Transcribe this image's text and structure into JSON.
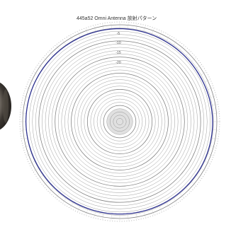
{
  "chart_data": {
    "type": "polar-line",
    "title": "445a52 Omni Antenna 放射パターン",
    "radial_labels": [
      "-5",
      "-10",
      "-15",
      "-20"
    ],
    "series": [
      {
        "values_angle_deg": [
          0,
          30,
          60,
          90,
          120,
          150,
          180,
          210,
          240,
          270,
          300,
          330,
          360
        ],
        "values_level_db": [
          -1.2,
          -1.4,
          -1.5,
          -1.3,
          -1.2,
          -1.3,
          -1.4,
          -1.3,
          -1.2,
          -1.0,
          -1.1,
          -1.2,
          -1.2
        ],
        "color": "#2b2f8f"
      }
    ],
    "grid": true
  },
  "decor": {
    "left_object": "product-photo-partial",
    "accent_color": "#2b2f8f",
    "grid_color": "#6f6f6f"
  }
}
